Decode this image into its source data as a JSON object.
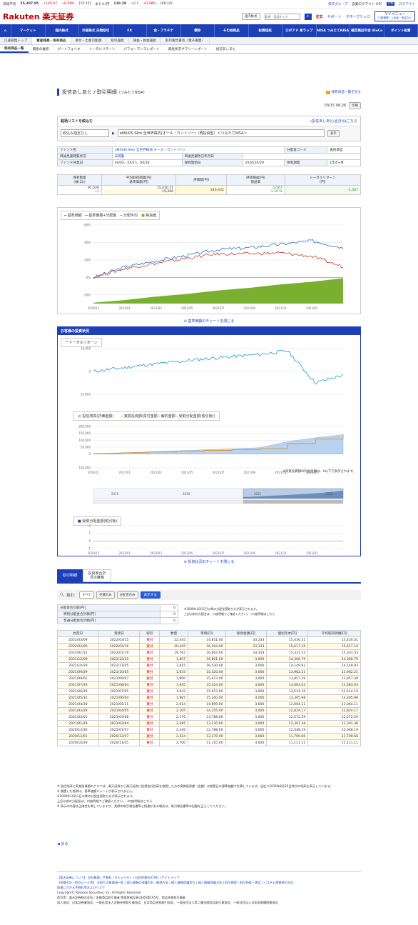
{
  "ticker": {
    "nikkei_label": "日経平均",
    "nikkei": "25,307.85",
    "nikkei_chg": "+145.07",
    "nikkei_pct": "+0.58%",
    "nikkei_time": "[15:15]",
    "usdjpy_label": "米ドル/円",
    "usdjpy": "118.28",
    "usdjpy_chg": "+0.1",
    "usdjpy_pct": "+0.08%",
    "usdjpy_time": "[08:10]",
    "group": "楽天グループ",
    "autologout": "自動ログアウト OFF",
    "on": "ON",
    "logout": "ログアウト"
  },
  "header": {
    "logo": "Rakuten 楽天証券",
    "search_select": "国内株式",
    "search_placeholder": "銘柄・用語を入力",
    "order": "注文",
    "support": "サポート",
    "mypage": "マネーブリッジ",
    "mymenu": "マイメニュー",
    "mymenu_sub": "口座管理・入出金・設定など"
  },
  "nav": [
    "マーケット",
    "国内株式",
    "外国株式 先物取引",
    "FX",
    "金・プラチナ",
    "債券",
    "その他商品",
    "投資信託",
    "ロボアド 楽ラップ",
    "NISA つみたてNISA",
    "確定拠出年金 iDeCo",
    "ポイント投資"
  ],
  "subnav": [
    "口座管理トップ",
    "資産残高・保有商品",
    "買付・出金可能額",
    "取引履歴",
    "損益・税金履歴",
    "取引報告書等（電子書面）"
  ],
  "subnav2": [
    "保有商品一覧",
    "資産の推移",
    "ポートフォリオ",
    "トータルリターン",
    "パフォーマンスレポート",
    "資産状況サマリーレポート",
    "投信あしあと"
  ],
  "page": {
    "title": "投信あしあと / 取引明細",
    "title_sub": "（つみたてNISA）",
    "help": "保有商品一覧を見る",
    "date": "03/15 06:26",
    "print": "印刷"
  },
  "filter": {
    "label": "銘柄リストを絞込む",
    "link": "→投信あしあと(合計)はこちら",
    "select1": "絞込み指定なし",
    "select2": "eMAXIS Slim 全世界株式(オール・カントリー)（再投資型）＜つみたてNISA＞",
    "btn": "表示"
  },
  "fund": {
    "name_label": "ファンド名",
    "name": "eMAXIS Slim 全世界株式(オール・カントリー)",
    "dist_label": "分配金コース",
    "dist": "再投資型",
    "view_label": "目論見書閲覧状況",
    "view": "未閲覧",
    "doc_label": "目論見書改訂年月日",
    "doc": "-",
    "holiday_label": "ファンド休業日",
    "holiday": "04/05、04/15、04/18",
    "start_label": "保有開始日",
    "start": "2020/10/29",
    "period_label": "保有期間",
    "period": "1年4ヶ月"
  },
  "summary": {
    "h_qty": "保有数量",
    "h_qty2": "(株(口))",
    "h_avg": "平均取得価額[円]",
    "h_avg2": "基準価額[円]",
    "h_val": "評価額[円]",
    "h_pl": "評価損益[円]",
    "h_pl2": "損益率",
    "h_tr": "トータルリターン",
    "h_tr2": "[円]",
    "qty": "92,026",
    "qty_sub": "(-)",
    "avg": "15,430.31",
    "nav": "15,260",
    "val": "140,432",
    "pl": "-1,567",
    "plr": "-1.10 %",
    "tr": "-1,567"
  },
  "chart1": {
    "legend": [
      "基準価額",
      "基準価額+分配金",
      "分配平均",
      "純資産"
    ],
    "yticks": [
      "60%",
      "40%",
      "20%",
      "0%",
      "-20%"
    ],
    "xticks": [
      "2020/11",
      "2021/01",
      "2021/03",
      "2021/05",
      "2021/07",
      "2021/09",
      "2021/11",
      "2022/01"
    ],
    "close": "基準価額のチャートを閉じる"
  },
  "status": {
    "title": "お客様の投資状況",
    "tr_legend": "トータルリターン",
    "tr_yticks": [
      "10,000",
      "0",
      "-10,000"
    ],
    "inv_legend1": "投信残高(評価金額)",
    "inv_legend2": "実質投資額(買付金額－解約金額－受取分配金額(税引後))",
    "inv_yticks": [
      "200,000",
      "150,000",
      "100,000",
      "50,000",
      "0",
      "-100,000"
    ],
    "inv_note": "※実質投資額の利益金額は、0以下で表示されます。",
    "range_years": [
      "2019",
      "2020",
      "2021",
      "2022"
    ],
    "div_legend": "受取分配金額(税引後)",
    "div_yticks": [
      "2",
      "1",
      "0",
      "-1"
    ],
    "close": "投資状況のチャートを閉じる"
  },
  "tabs": {
    "t1": "取引明細",
    "t2": "投資家合計 月次推移"
  },
  "trfilter": {
    "label": "取引：",
    "all": "すべて",
    "buy": "売買のみ",
    "div": "分配金のみ",
    "btn": "表示する"
  },
  "divsum": {
    "h": "分配金合計額[円]",
    "s1": "特別分配金合計額[円]",
    "s2": "普通分配金合計額[円]",
    "v": "0",
    "v1": "0",
    "v2": "0",
    "note1": "※2008年10月1日以降の分配金受取り分が表示されます。",
    "note2": "上記以前の分配金は、口座明細でご確認ください。→口座明細はこちら"
  },
  "table": {
    "headers": [
      "約定日",
      "受渡日",
      "取引",
      "数量",
      "単価[円]",
      "受渡金額[円]",
      "個別元本[円]",
      "平均取得価額[円]"
    ],
    "rows": [
      [
        "2022/03/09",
        "2022/03/15",
        "買付",
        "22,445",
        "14,851.00",
        "33,333",
        "15,430.31",
        "15,430.31"
      ],
      [
        "2022/02/09",
        "2022/02/16",
        "買付",
        "20,445",
        "16,304.00",
        "33,333",
        "15,617.19",
        "15,617.19"
      ],
      [
        "2022/01/12",
        "2022/01/19",
        "買付",
        "19,767",
        "16,863.00",
        "33,333",
        "15,331.53",
        "15,331.53"
      ],
      [
        "2021/12/09",
        "2021/12/15",
        "買付",
        "1,807",
        "16,601.00",
        "3,000",
        "14,300.79",
        "14,300.79"
      ],
      [
        "2021/10/29",
        "2021/11/05",
        "買付",
        "1,815",
        "16,530.00",
        "3,000",
        "14,149.92",
        "14,149.92"
      ],
      [
        "2021/09/29",
        "2021/10/05",
        "買付",
        "1,933",
        "15,520.00",
        "3,000",
        "13,962.21",
        "13,962.21"
      ],
      [
        "2021/09/01",
        "2021/09/07",
        "買付",
        "1,890",
        "15,873.00",
        "3,000",
        "13,857.39",
        "13,857.39"
      ],
      [
        "2021/07/29",
        "2021/08/04",
        "買付",
        "1,945",
        "15,424.00",
        "3,000",
        "13,683.63",
        "13,683.63"
      ],
      [
        "2021/06/29",
        "2021/07/05",
        "買付",
        "1,942",
        "15,453.00",
        "3,000",
        "13,514.19",
        "13,514.19"
      ],
      [
        "2021/05/31",
        "2021/06/04",
        "買付",
        "1,987",
        "15,100.00",
        "3,000",
        "13,305.98",
        "13,305.98"
      ],
      [
        "2021/04/30",
        "2021/05/11",
        "買付",
        "2,014",
        "14,899.00",
        "3,000",
        "13,064.11",
        "13,064.11"
      ],
      [
        "2021/03/29",
        "2021/04/05",
        "買付",
        "2,105",
        "14,255.00",
        "3,000",
        "12,824.17",
        "12,824.17"
      ],
      [
        "2021/03/01",
        "2021/03/08",
        "買付",
        "2,176",
        "13,788.00",
        "3,000",
        "12,572.29",
        "12,572.29"
      ],
      [
        "2021/01/29",
        "2021/02/04",
        "買付",
        "2,285",
        "13,130.00",
        "3,000",
        "12,301.38",
        "12,301.38"
      ],
      [
        "2020/12/30",
        "2021/01/07",
        "買付",
        "2,346",
        "12,788.00",
        "3,000",
        "12,048.19",
        "12,048.19"
      ],
      [
        "2020/12/01",
        "2020/12/07",
        "買付",
        "2,424",
        "12,379.00",
        "3,000",
        "11,709.60",
        "11,709.60"
      ],
      [
        "2020/10/29",
        "2020/11/05",
        "買付",
        "2,700",
        "11,110.00",
        "3,000",
        "11,111.11",
        "11,111.11"
      ]
    ]
  },
  "notes": [
    "※ 投信残高と実質投資額のグラフは、楽天証券から楽天証券に投資信託残高を移管した方の実質投資額（金額）は移管日の基準価額で計算しています。当社で2016年8月26日時点の残高を表示しています。",
    "※ 償還した銘柄は、基準価額チャートが表示されません。",
    "※2008年10月1日以降の分配金受取り分が表示されます。",
    "上記以前の分配金は、口座明細でご確認ください。→口座明細はこちら",
    "※ 表示の内容は正確性を期していますが、実際の取引報告書等と相違がある場合は、取引報告書等の記載を正としてください。"
  ],
  "back": "戻る",
  "footer": {
    "l1": "【楽天証券について】 会社概要 | 手数料 | セキュリティ | 社会的責任(CSR) | サイトマップ",
    "l2": "【各種主計・取引ルール等】 お取引注意事項一覧 | 個人情報の保護方針 | 勧誘方針 | 個人情報保護宣言 | 個人情報保護方針 | 取引規程・取引約款・規定 | システム障害時の対応",
    "l3": "投資にかかる手数料等およびリスク",
    "l4": "Copyright© Rakuten Securities, Inc. All Rights Reserved.",
    "l5": "商号等：楽天証券株式会社／金融商品取引業者 関東財務局長(金商)第195号、商品先物取引業者",
    "l6": "加入協会：日本証券業協会、一般社団法人金融先物取引業協会、日本商品先物取引協会、一般社団法人第二種金融商品取引業協会、一般社団法人日本投資顧問業協会"
  },
  "chart_data": [
    {
      "type": "line",
      "title": "",
      "legend_position": "top",
      "y_unit": "%",
      "ylim": [
        -30,
        60
      ],
      "x": [
        "2020/11",
        "2021/01",
        "2021/03",
        "2021/05",
        "2021/07",
        "2021/09",
        "2021/11",
        "2022/01",
        "2022/03"
      ],
      "series": [
        {
          "name": "基準価額",
          "values": [
            0,
            12,
            19,
            25,
            32,
            34,
            38,
            42,
            34
          ]
        },
        {
          "name": "基準価額+分配金",
          "values": [
            0,
            10,
            16,
            22,
            27,
            27,
            28,
            24,
            12
          ]
        },
        {
          "name": "分配平均",
          "values": [
            0,
            0,
            0,
            0,
            0,
            0,
            0,
            0,
            0
          ]
        },
        {
          "name": "純資産",
          "values": [
            -29,
            -26,
            -22,
            -19,
            -15,
            -12,
            -8,
            -5,
            -1
          ]
        }
      ]
    },
    {
      "type": "line",
      "title": "",
      "series": [
        {
          "name": "トータルリターン",
          "values": [
            0,
            1500,
            3000,
            4200,
            5500,
            6500,
            7500,
            9000,
            -5000,
            -1567
          ]
        }
      ],
      "x": [
        "2020/11",
        "2021/01",
        "2021/03",
        "2021/05",
        "2021/07",
        "2021/09",
        "2021/11",
        "2022/01",
        "2022/03",
        "2022/03"
      ],
      "ylim": [
        -10000,
        10000
      ]
    },
    {
      "type": "area",
      "title": "",
      "x": [
        "2020/11",
        "2021/01",
        "2021/03",
        "2021/05",
        "2021/07",
        "2021/09",
        "2021/11",
        "2022/01",
        "2022/02",
        "2022/03"
      ],
      "series": [
        {
          "name": "投信残高(評価金額)",
          "values": [
            3000,
            9000,
            16000,
            23000,
            31000,
            38000,
            46000,
            90000,
            118000,
            140432
          ]
        },
        {
          "name": "実質投資額(買付金額－解約金額－受取分配金額(税引後))",
          "values": [
            3000,
            9000,
            15000,
            21000,
            27000,
            33000,
            39000,
            75000,
            108000,
            141999
          ]
        }
      ],
      "ylim": [
        -100000,
        200000
      ]
    },
    {
      "type": "bar",
      "title": "",
      "series": [
        {
          "name": "受取分配金額(税引後)",
          "values": [
            0,
            0,
            0,
            0,
            0,
            0,
            0,
            0
          ]
        }
      ],
      "x": [
        "2020/11",
        "2021/01",
        "2021/03",
        "2021/05",
        "2021/07",
        "2021/09",
        "2021/11",
        "2022/01"
      ],
      "ylim": [
        -1,
        2
      ]
    }
  ]
}
